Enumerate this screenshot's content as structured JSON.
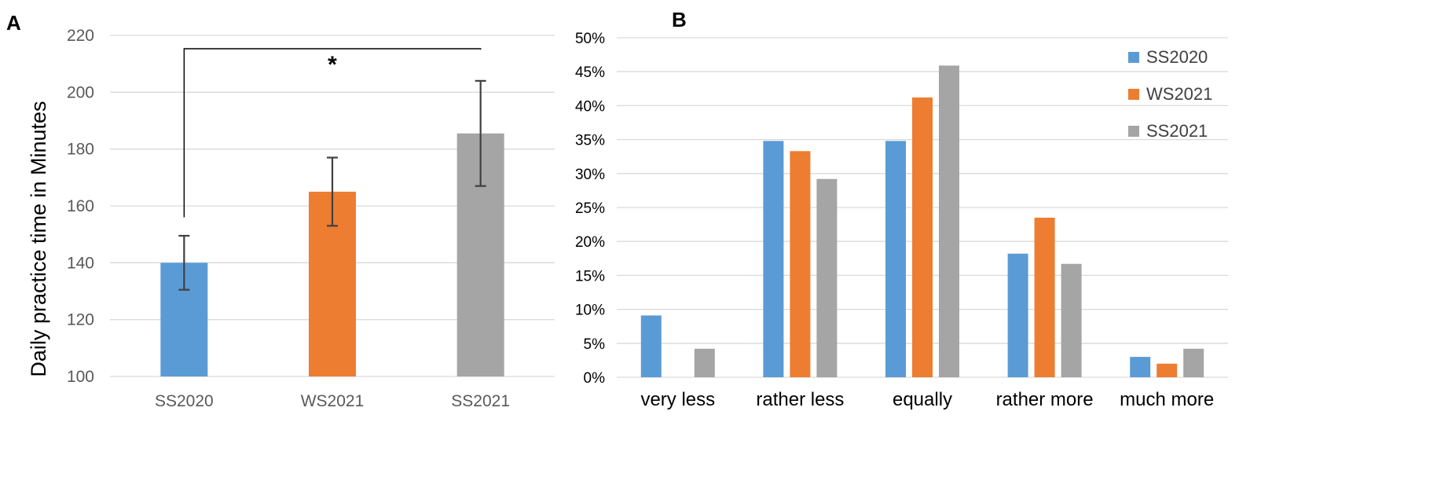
{
  "colors": {
    "SS2020": "#5b9bd5",
    "WS2021": "#ed7d31",
    "SS2021": "#a5a5a5",
    "grid": "#d9d9d9",
    "errorbar": "#404040"
  },
  "chart_data": [
    {
      "panel": "A",
      "type": "bar",
      "title": "",
      "xlabel": "",
      "ylabel": "Daily practice time in Minutes",
      "ylim": [
        100,
        220
      ],
      "yticks": [
        100,
        120,
        140,
        160,
        180,
        200,
        220
      ],
      "categories": [
        "SS2020",
        "WS2021",
        "SS2021"
      ],
      "values": [
        140,
        165,
        185.5
      ],
      "error": [
        9.5,
        12,
        18.5
      ],
      "significance": {
        "from": "SS2020",
        "to": "SS2021",
        "label": "*"
      }
    },
    {
      "panel": "B",
      "type": "bar",
      "title": "",
      "xlabel": "",
      "ylabel": "",
      "ylim": [
        0,
        50
      ],
      "yticks": [
        "0%",
        "5%",
        "10%",
        "15%",
        "20%",
        "25%",
        "30%",
        "35%",
        "40%",
        "45%",
        "50%"
      ],
      "categories": [
        "very less",
        "rather less",
        "equally",
        "rather more",
        "much more"
      ],
      "legend_position": "top-right",
      "series": [
        {
          "name": "SS2020",
          "values": [
            9.1,
            34.8,
            34.8,
            18.2,
            3.0
          ]
        },
        {
          "name": "WS2021",
          "values": [
            0,
            33.3,
            41.2,
            23.5,
            2.0
          ]
        },
        {
          "name": "SS2021",
          "values": [
            4.2,
            29.2,
            45.9,
            16.7,
            4.2
          ]
        }
      ]
    }
  ]
}
